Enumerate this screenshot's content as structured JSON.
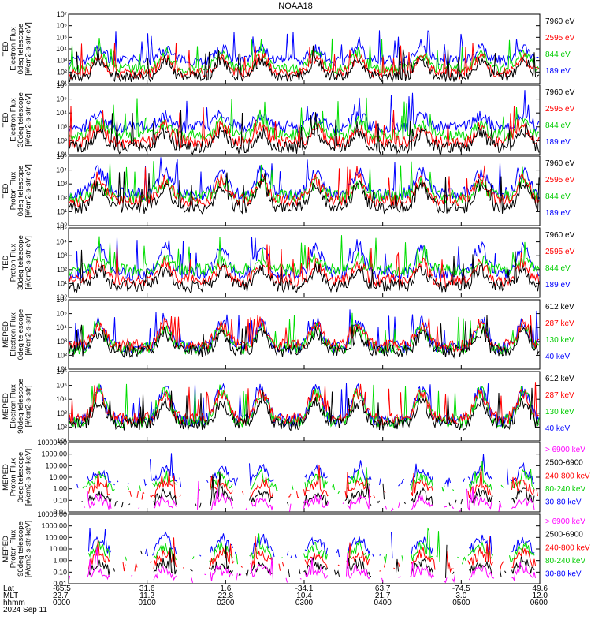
{
  "title": "NOAA18",
  "footer": {
    "row_labels": [
      "Lat",
      "MLT",
      "hhmm",
      "2024 Sep 11"
    ],
    "lat": [
      "-65.5",
      "31.6",
      "1.6",
      "-34.1",
      "63.7",
      "-74.5",
      "49.6"
    ],
    "mlt": [
      "22.7",
      "11.2",
      "22.8",
      "10.4",
      "21.7",
      "3.0",
      "12.0"
    ],
    "hhmm": [
      "0000",
      "0100",
      "0200",
      "0300",
      "0400",
      "0500",
      "0600"
    ]
  },
  "chart_data": [
    {
      "type": "line",
      "ylabel": [
        "TED",
        "Electron Flux",
        "0deg telescope",
        "[#/cm2-s-str-eV]"
      ],
      "yscale": "log",
      "ytick_labels": [
        "10¹",
        "10²",
        "10³",
        "10⁴",
        "10⁵",
        "10⁶",
        "10⁷"
      ],
      "ylim_exp": [
        1,
        7
      ],
      "series": [
        {
          "name": "7960 eV",
          "color": "#000000",
          "level": 1.6,
          "peak": 3.0
        },
        {
          "name": "2595 eV",
          "color": "#ff0000",
          "level": 1.9,
          "peak": 3.3
        },
        {
          "name": "844 eV",
          "color": "#00dd00",
          "level": 2.3,
          "peak": 3.6
        },
        {
          "name": "189 eV",
          "color": "#0000ff",
          "level": 3.0,
          "peak": 4.0
        }
      ],
      "legend_colors": [
        "#000000",
        "#ff0000",
        "#00dd00",
        "#0000ff"
      ]
    },
    {
      "type": "line",
      "ylabel": [
        "TED",
        "Electron Flux",
        "30deg telescope",
        "[#/cm2-s-str-eV]"
      ],
      "yscale": "log",
      "ytick_labels": [
        "10¹",
        "10²",
        "10³",
        "10⁴",
        "10⁵",
        "10⁶"
      ],
      "ylim_exp": [
        1,
        6
      ],
      "series": [
        {
          "name": "7960 eV",
          "color": "#000000",
          "level": 1.5,
          "peak": 2.6
        },
        {
          "name": "2595 eV",
          "color": "#ff0000",
          "level": 1.9,
          "peak": 3.0
        },
        {
          "name": "844 eV",
          "color": "#00dd00",
          "level": 2.4,
          "peak": 3.3
        },
        {
          "name": "189 eV",
          "color": "#0000ff",
          "level": 3.0,
          "peak": 3.8
        }
      ],
      "legend_colors": [
        "#000000",
        "#ff0000",
        "#00dd00",
        "#0000ff"
      ]
    },
    {
      "type": "line",
      "ylabel": [
        "TED",
        "Proton Flux",
        "0deg telescope",
        "[#/cm2-s-str-eV]"
      ],
      "yscale": "log",
      "ytick_labels": [
        "10⁰",
        "10¹",
        "10²",
        "10³",
        "10⁴",
        "10⁵"
      ],
      "ylim_exp": [
        0,
        5
      ],
      "series": [
        {
          "name": "7960 eV",
          "color": "#000000",
          "level": 1.3,
          "peak": 2.9
        },
        {
          "name": "2595 eV",
          "color": "#ff0000",
          "level": 1.8,
          "peak": 3.3
        },
        {
          "name": "844 eV",
          "color": "#00dd00",
          "level": 2.1,
          "peak": 3.0
        },
        {
          "name": "189 eV",
          "color": "#0000ff",
          "level": 2.3,
          "peak": 3.9
        }
      ],
      "legend_colors": [
        "#000000",
        "#ff0000",
        "#00dd00",
        "#0000ff"
      ]
    },
    {
      "type": "line",
      "ylabel": [
        "TED",
        "Proton Flux",
        "30deg telescope",
        "[#/cm2-s-str-eV]"
      ],
      "yscale": "log",
      "ytick_labels": [
        "10⁰",
        "10¹",
        "10²",
        "10³",
        "10⁴",
        "10⁵"
      ],
      "ylim_exp": [
        0,
        5
      ],
      "series": [
        {
          "name": "7960 eV",
          "color": "#000000",
          "level": 0.8,
          "peak": 2.0
        },
        {
          "name": "2595 eV",
          "color": "#ff0000",
          "level": 1.2,
          "peak": 2.4
        },
        {
          "name": "844 eV",
          "color": "#00dd00",
          "level": 2.0,
          "peak": 2.6
        },
        {
          "name": "189 eV",
          "color": "#0000ff",
          "level": 1.7,
          "peak": 3.6
        }
      ],
      "legend_colors": [
        "#000000",
        "#ff0000",
        "#00dd00",
        "#0000ff"
      ]
    },
    {
      "type": "line",
      "ylabel": [
        "MEPED",
        "Electron Flux",
        "0deg telescope",
        "[#/cm2-s-str]"
      ],
      "yscale": "log",
      "ytick_labels": [
        "10¹",
        "10²",
        "10³",
        "10⁴",
        "10⁵",
        "10⁶"
      ],
      "ylim_exp": [
        1,
        6
      ],
      "series": [
        {
          "name": "612 keV",
          "color": "#000000",
          "level": 2.3,
          "peak": 3.6
        },
        {
          "name": "287 keV",
          "color": "#ff0000",
          "level": 2.7,
          "peak": 4.2
        },
        {
          "name": "130 keV",
          "color": "#00dd00",
          "level": 2.5,
          "peak": 4.0
        },
        {
          "name": "40 keV",
          "color": "#0000ff",
          "level": 2.6,
          "peak": 4.3
        }
      ],
      "legend_colors": [
        "#000000",
        "#ff0000",
        "#00dd00",
        "#0000ff"
      ]
    },
    {
      "type": "line",
      "ylabel": [
        "MEPED",
        "Electron Flux",
        "90deg telescope",
        "[#/cm2-s-str]"
      ],
      "yscale": "log",
      "ytick_labels": [
        "10¹",
        "10²",
        "10³",
        "10⁴",
        "10⁵",
        "10⁶"
      ],
      "ylim_exp": [
        1,
        6
      ],
      "series": [
        {
          "name": "612 keV",
          "color": "#000000",
          "level": 2.2,
          "peak": 3.8
        },
        {
          "name": "287 keV",
          "color": "#ff0000",
          "level": 2.6,
          "peak": 4.4
        },
        {
          "name": "130 keV",
          "color": "#00dd00",
          "level": 2.4,
          "peak": 4.6
        },
        {
          "name": "40 keV",
          "color": "#0000ff",
          "level": 2.5,
          "peak": 4.8
        }
      ],
      "legend_colors": [
        "#000000",
        "#ff0000",
        "#00dd00",
        "#0000ff"
      ]
    },
    {
      "type": "line",
      "ylabel": [
        "MEPED",
        "Proton Flux",
        "0deg telescope",
        "[#/cm2-s-str-keV]"
      ],
      "yscale": "log",
      "ytick_labels": [
        "0.01",
        "0.10",
        "1.00",
        "10.00",
        "100.00",
        "1000.00",
        "10000.00"
      ],
      "ylim_exp": [
        -2,
        4
      ],
      "series": [
        {
          "name": "> 6900 keV",
          "color": "#ff00ff",
          "level": -1.6,
          "peak": -0.9
        },
        {
          "name": "2500-6900",
          "color": "#000000",
          "level": -1.2,
          "peak": -0.3
        },
        {
          "name": "240-800 keV",
          "color": "#ff0000",
          "level": -0.6,
          "peak": 0.5
        },
        {
          "name": "80-240 keV",
          "color": "#00dd00",
          "level": 0.0,
          "peak": 1.1
        },
        {
          "name": "30-80 keV",
          "color": "#0000ff",
          "level": 0.5,
          "peak": 1.7
        }
      ],
      "legend_colors": [
        "#ff00ff",
        "#000000",
        "#ff0000",
        "#00dd00",
        "#0000ff"
      ]
    },
    {
      "type": "line",
      "ylabel": [
        "MEPED",
        "Proton Flux",
        "90deg telescope",
        "[#/cm2-s-str-keV]"
      ],
      "yscale": "log",
      "ytick_labels": [
        "0.01",
        "0.10",
        "1.00",
        "10.00",
        "100.00",
        "1000.00",
        "10000.00"
      ],
      "ylim_exp": [
        -2,
        4
      ],
      "series": [
        {
          "name": "> 6900 keV",
          "color": "#ff00ff",
          "level": -1.5,
          "peak": -0.7
        },
        {
          "name": "2500-6900",
          "color": "#000000",
          "level": -1.1,
          "peak": -0.2
        },
        {
          "name": "240-800 keV",
          "color": "#ff0000",
          "level": -0.5,
          "peak": 0.6
        },
        {
          "name": "80-240 keV",
          "color": "#00dd00",
          "level": 0.1,
          "peak": 1.2
        },
        {
          "name": "30-80 keV",
          "color": "#0000ff",
          "level": 0.6,
          "peak": 1.9
        }
      ],
      "legend_colors": [
        "#ff00ff",
        "#000000",
        "#ff0000",
        "#00dd00",
        "#0000ff"
      ]
    }
  ]
}
